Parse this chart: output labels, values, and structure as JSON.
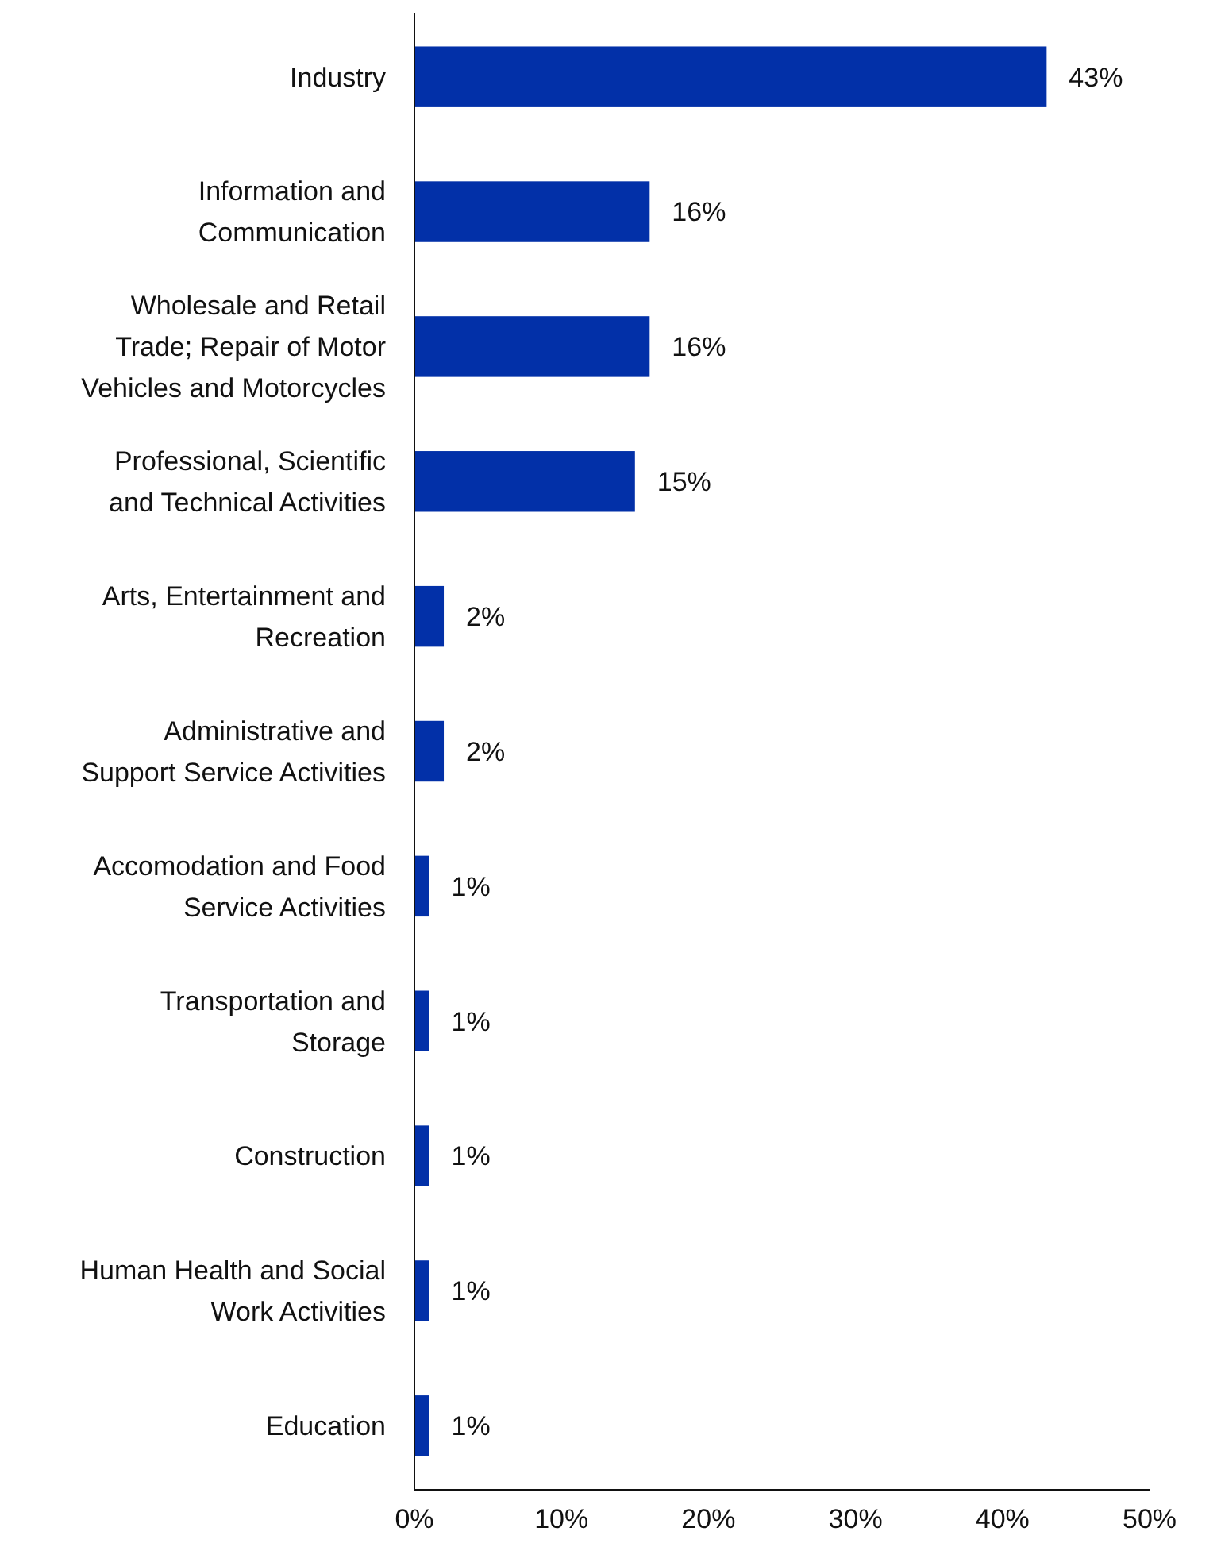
{
  "chart_data": {
    "type": "bar",
    "orientation": "horizontal",
    "categories": [
      "Industry",
      "Information and Communication",
      "Wholesale  and Retail Trade; Repair of Motor Vehicles and Motorcycles",
      "Professional, Scientific and Technical Activities",
      "Arts, Entertainment and Recreation",
      "Administrative and Support Service Activities",
      "Accomodation and Food Service Activities",
      "Transportation and Storage",
      "Construction",
      "Human Health and Social Work Activities",
      "Education"
    ],
    "values": [
      43,
      16,
      16,
      15,
      2,
      2,
      1,
      1,
      1,
      1,
      1
    ],
    "value_labels": [
      "43%",
      "16%",
      "16%",
      "15%",
      "2%",
      "2%",
      "1%",
      "1%",
      "1%",
      "1%",
      "1%"
    ],
    "color": "#0230a8",
    "xlim": [
      0,
      50
    ],
    "xticks": [
      {
        "value": 0,
        "label": "0%"
      },
      {
        "value": 10,
        "label": "10%"
      },
      {
        "value": 20,
        "label": "20%"
      },
      {
        "value": 30,
        "label": "30%"
      },
      {
        "value": 40,
        "label": "40%"
      },
      {
        "value": 50,
        "label": "50%"
      }
    ],
    "grid": false
  }
}
